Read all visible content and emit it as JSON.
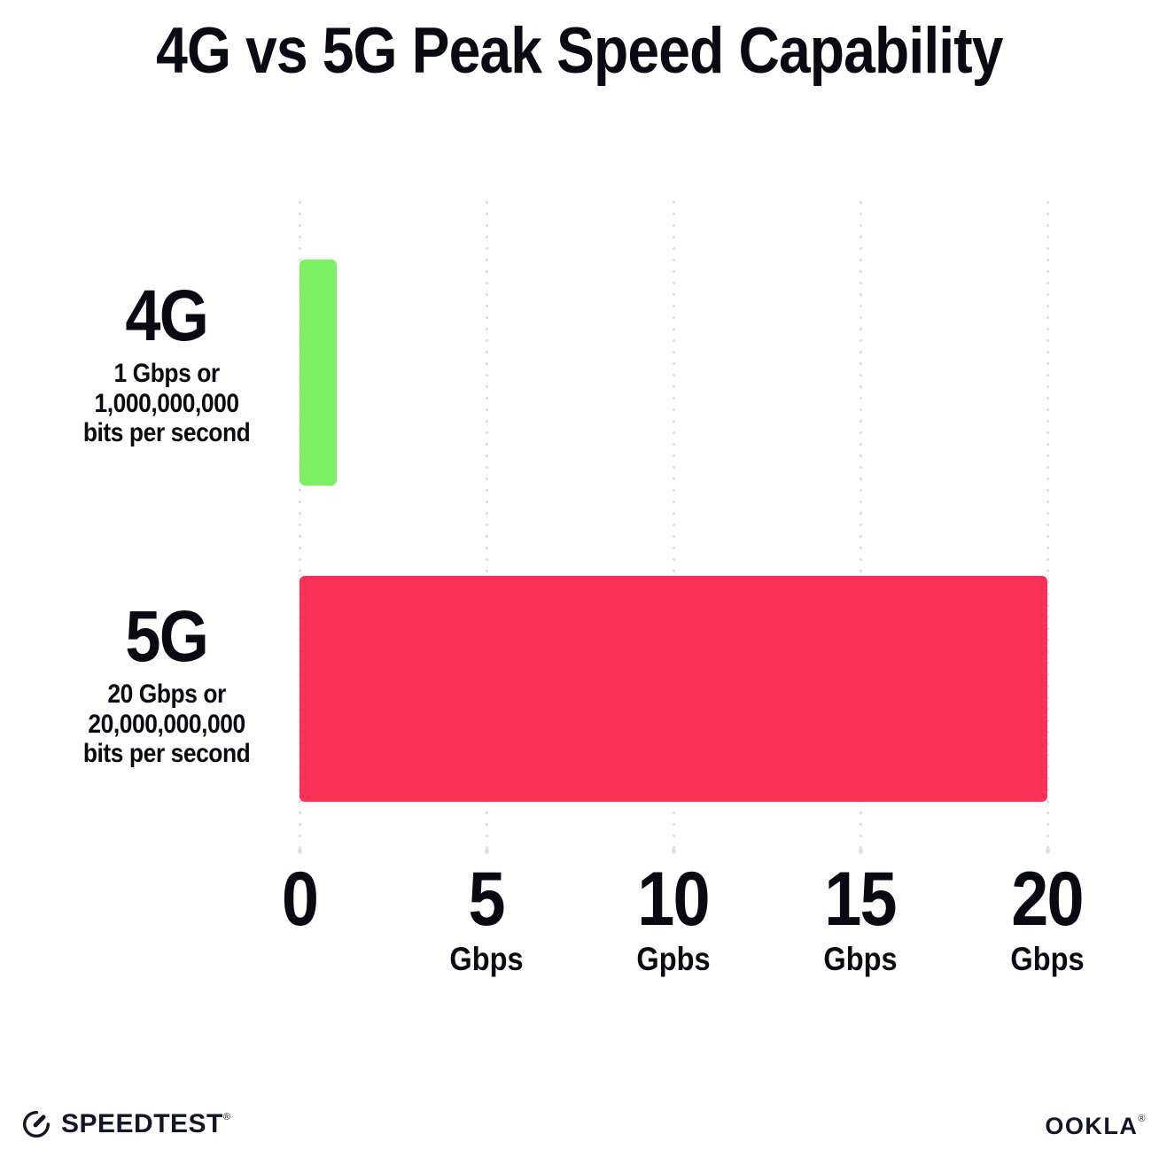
{
  "title": "4G vs 5G Peak Speed Capability",
  "chart_data": {
    "type": "bar",
    "orientation": "horizontal",
    "title": "4G vs 5G Peak Speed Capability",
    "categories": [
      "4G",
      "5G"
    ],
    "values": [
      1,
      20
    ],
    "value_unit": "Gbps",
    "xlim": [
      0,
      20
    ],
    "grid": "vertical dotted gridlines at each tick",
    "legend": "none",
    "bar_colors": [
      "#7DF163",
      "#FC3158"
    ],
    "category_sublabels": [
      [
        "1 Gbps or",
        "1,000,000,000",
        "bits per second"
      ],
      [
        "20 Gbps or",
        "20,000,000,000",
        "bits per second"
      ]
    ],
    "x_ticks": [
      {
        "value": "0",
        "unit": ""
      },
      {
        "value": "5",
        "unit": "Gbps"
      },
      {
        "value": "10",
        "unit": "Gpbs"
      },
      {
        "value": "15",
        "unit": "Gbps"
      },
      {
        "value": "20",
        "unit": "Gbps"
      }
    ]
  },
  "footer": {
    "speedtest_label": "SPEEDTEST",
    "speedtest_mark": "®",
    "ookla_label": "OOKLA",
    "ookla_mark": "®"
  },
  "colors": {
    "background": "#ffffff",
    "text": "#0a0a12",
    "grid_dot": "#DFDFE8",
    "bar_4g_green": "#7DF163",
    "bar_5g_pink": "#FC3158",
    "logo_ink": "#141526"
  }
}
